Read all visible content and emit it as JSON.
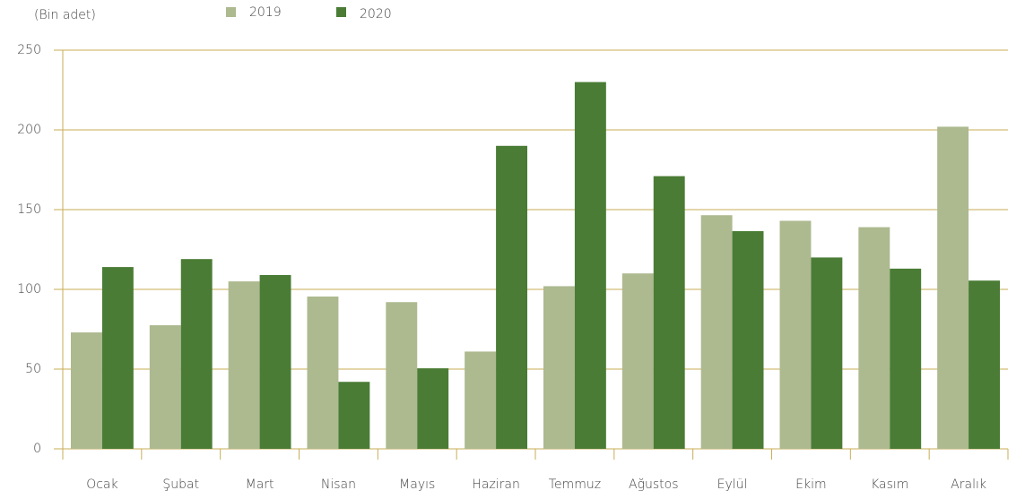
{
  "chart_data": {
    "type": "bar",
    "unit_label": "(Bin adet)",
    "categories": [
      "Ocak",
      "Şubat",
      "Mart",
      "Nisan",
      "Mayıs",
      "Haziran",
      "Temmuz",
      "Ağustos",
      "Eylül",
      "Ekim",
      "Kasım",
      "Aralık"
    ],
    "series": [
      {
        "name": "2019",
        "color": "#adb98f",
        "values": [
          73,
          77.5,
          105,
          95.5,
          92,
          61,
          102,
          110,
          146.5,
          143,
          139,
          202
        ]
      },
      {
        "name": "2020",
        "color": "#4a7c35",
        "values": [
          114,
          119,
          109,
          42,
          50.5,
          190,
          230,
          171,
          136.5,
          120,
          113,
          105.5
        ]
      }
    ],
    "ylim": [
      0,
      250
    ],
    "yticks": [
      0,
      50,
      100,
      150,
      200,
      250
    ],
    "grid": true,
    "grid_color": "#c9ad55"
  }
}
